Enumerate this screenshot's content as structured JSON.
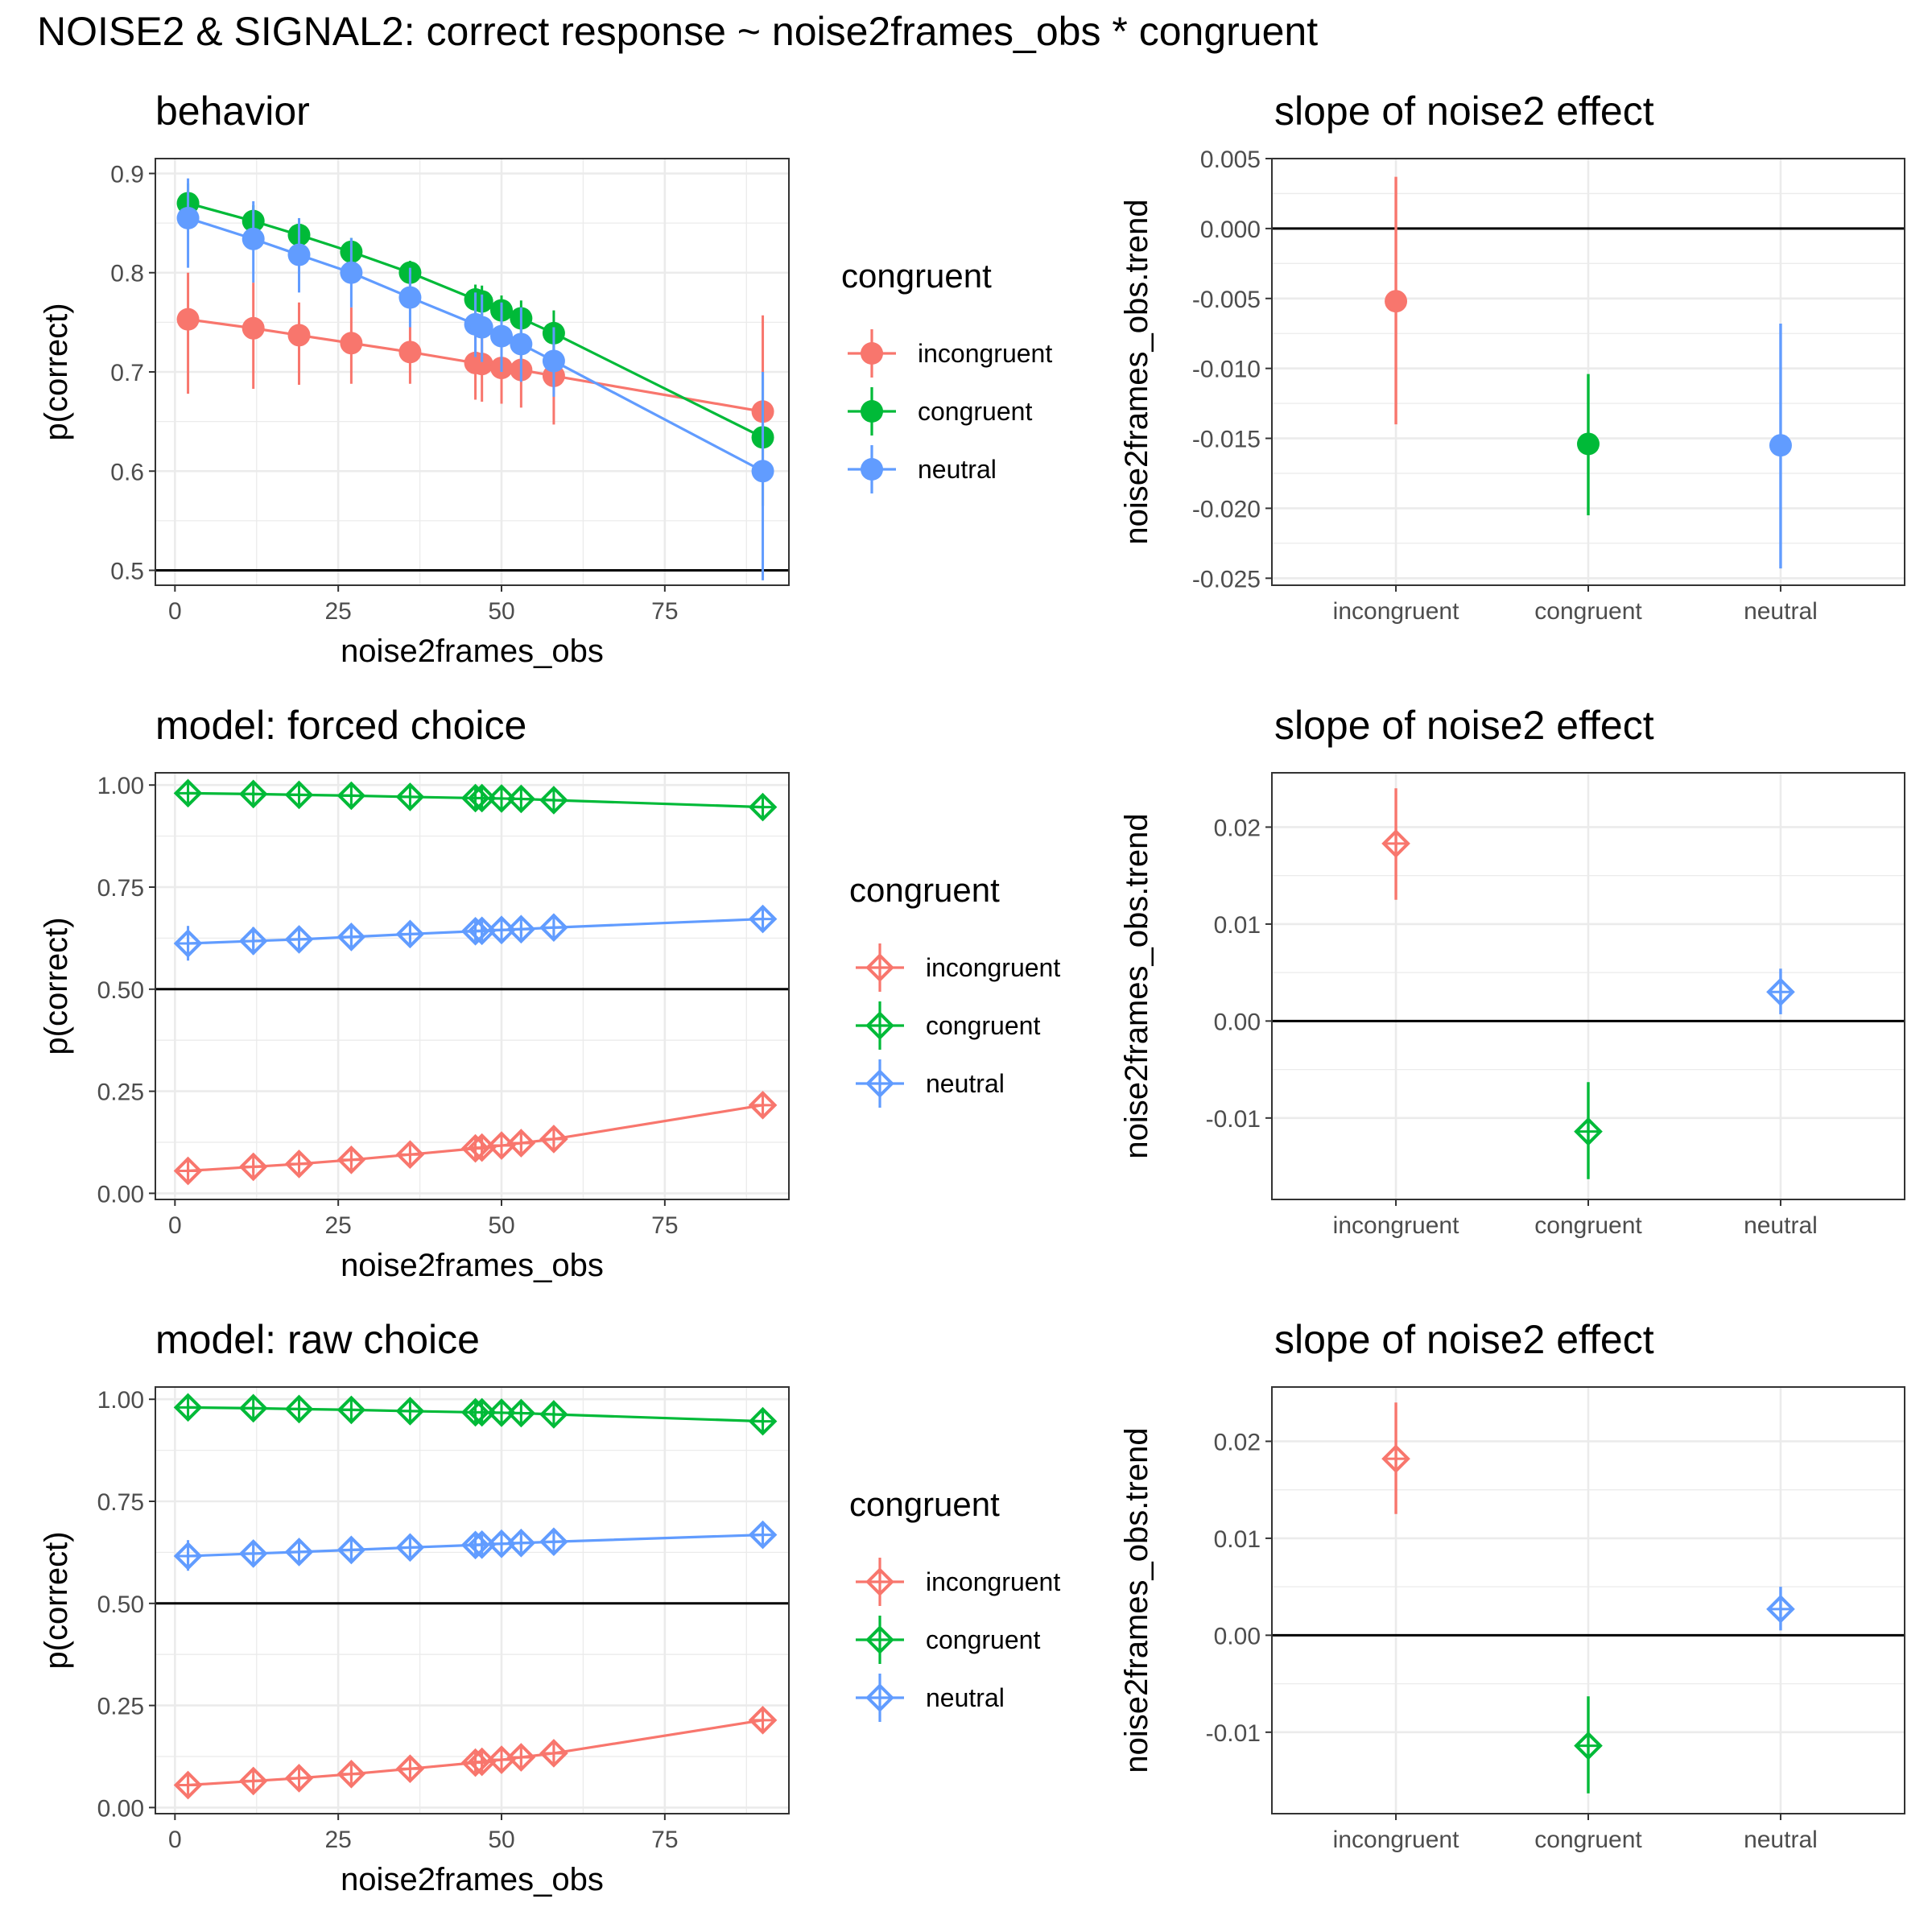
{
  "figure_title": "NOISE2 & SIGNAL2: correct response ~ noise2frames_obs * congruent",
  "colors": {
    "incongruent": "#F8766D",
    "congruent": "#00BA38",
    "neutral": "#619CFF",
    "grid": "#EBEBEB",
    "panel_border": "#333333",
    "reference_line": "#000000",
    "axis_text": "#4D4D4D"
  },
  "legend": {
    "title": "congruent",
    "items": [
      "incongruent",
      "congruent",
      "neutral"
    ]
  },
  "chart_data": [
    {
      "id": "behavior",
      "type": "line",
      "title": "behavior",
      "xlabel": "noise2frames_obs",
      "ylabel": "p(correct)",
      "marker": "circle",
      "xlim": [
        -3,
        94
      ],
      "ylim": [
        0.485,
        0.915
      ],
      "xticks": [
        0,
        25,
        50,
        75
      ],
      "xtick_labels": [
        "0",
        "25",
        "50",
        "75"
      ],
      "yticks": [
        0.5,
        0.6,
        0.7,
        0.8,
        0.9
      ],
      "ytick_labels": [
        "0.5",
        "0.6",
        "0.7",
        "0.8",
        "0.9"
      ],
      "reference_y": 0.5,
      "legend": true,
      "x": [
        2,
        12,
        19,
        27,
        36,
        46,
        47,
        50,
        53,
        58,
        90
      ],
      "series": [
        {
          "name": "incongruent",
          "values": [
            0.753,
            0.744,
            0.737,
            0.729,
            0.72,
            0.709,
            0.708,
            0.704,
            0.702,
            0.696,
            0.66
          ],
          "lower": [
            0.678,
            0.683,
            0.687,
            0.688,
            0.688,
            0.672,
            0.67,
            0.668,
            0.664,
            0.647,
            0.565
          ],
          "upper": [
            0.8,
            0.79,
            0.77,
            0.765,
            0.745,
            0.74,
            0.74,
            0.738,
            0.738,
            0.73,
            0.757
          ]
        },
        {
          "name": "congruent",
          "values": [
            0.87,
            0.852,
            0.838,
            0.821,
            0.8,
            0.773,
            0.771,
            0.762,
            0.754,
            0.739,
            0.634
          ],
          "lower": [
            0.848,
            0.835,
            0.822,
            0.808,
            0.787,
            0.758,
            0.755,
            0.745,
            0.735,
            0.716,
            0.565
          ],
          "upper": [
            0.89,
            0.868,
            0.855,
            0.835,
            0.812,
            0.788,
            0.787,
            0.777,
            0.772,
            0.762,
            0.7
          ]
        },
        {
          "name": "neutral",
          "values": [
            0.855,
            0.834,
            0.818,
            0.8,
            0.775,
            0.748,
            0.745,
            0.736,
            0.728,
            0.711,
            0.6
          ],
          "lower": [
            0.805,
            0.79,
            0.78,
            0.765,
            0.745,
            0.715,
            0.71,
            0.7,
            0.69,
            0.675,
            0.49
          ],
          "upper": [
            0.895,
            0.872,
            0.855,
            0.835,
            0.805,
            0.78,
            0.778,
            0.77,
            0.765,
            0.745,
            0.7
          ]
        }
      ]
    },
    {
      "id": "behavior-slope",
      "type": "scatter",
      "title": "slope of noise2 effect",
      "xlabel": "",
      "ylabel": "noise2frames_obs.trend",
      "marker": "circle",
      "categories": [
        "incongruent",
        "congruent",
        "neutral"
      ],
      "ylim": [
        -0.0255,
        0.005
      ],
      "yticks": [
        0.005,
        0.0,
        -0.005,
        -0.01,
        -0.015,
        -0.02,
        -0.025
      ],
      "ytick_labels": [
        "0.005",
        "0.000",
        "-0.005",
        "-0.010",
        "-0.015",
        "-0.020",
        "-0.025"
      ],
      "reference_y": 0,
      "values": [
        -0.0052,
        -0.0154,
        -0.0155
      ],
      "lower": [
        -0.014,
        -0.0205,
        -0.0243
      ],
      "upper": [
        0.0037,
        -0.0104,
        -0.0068
      ]
    },
    {
      "id": "forced-choice",
      "type": "line",
      "title": "model: forced choice",
      "xlabel": "noise2frames_obs",
      "ylabel": "p(correct)",
      "marker": "diamond",
      "xlim": [
        -3,
        94
      ],
      "ylim": [
        -0.015,
        1.03
      ],
      "xticks": [
        0,
        25,
        50,
        75
      ],
      "xtick_labels": [
        "0",
        "25",
        "50",
        "75"
      ],
      "yticks": [
        0.0,
        0.25,
        0.5,
        0.75,
        1.0
      ],
      "ytick_labels": [
        "0.00",
        "0.25",
        "0.50",
        "0.75",
        "1.00"
      ],
      "reference_y": 0.5,
      "legend": true,
      "x": [
        2,
        12,
        19,
        27,
        36,
        46,
        47,
        50,
        53,
        58,
        90
      ],
      "series": [
        {
          "name": "incongruent",
          "values": [
            0.055,
            0.065,
            0.072,
            0.082,
            0.095,
            0.11,
            0.112,
            0.117,
            0.123,
            0.133,
            0.216
          ],
          "lower": [
            0.04,
            0.05,
            0.058,
            0.068,
            0.082,
            0.095,
            0.097,
            0.101,
            0.106,
            0.115,
            0.19
          ],
          "upper": [
            0.07,
            0.08,
            0.088,
            0.098,
            0.11,
            0.127,
            0.13,
            0.135,
            0.142,
            0.153,
            0.245
          ]
        },
        {
          "name": "congruent",
          "values": [
            0.98,
            0.978,
            0.976,
            0.974,
            0.971,
            0.968,
            0.968,
            0.967,
            0.966,
            0.963,
            0.946
          ],
          "lower": [
            0.975,
            0.973,
            0.972,
            0.97,
            0.967,
            0.964,
            0.963,
            0.962,
            0.96,
            0.957,
            0.935
          ],
          "upper": [
            0.985,
            0.983,
            0.981,
            0.978,
            0.975,
            0.972,
            0.972,
            0.971,
            0.97,
            0.968,
            0.955
          ]
        },
        {
          "name": "neutral",
          "values": [
            0.612,
            0.618,
            0.622,
            0.628,
            0.635,
            0.642,
            0.643,
            0.645,
            0.647,
            0.651,
            0.672
          ],
          "lower": [
            0.57,
            0.585,
            0.593,
            0.603,
            0.614,
            0.625,
            0.626,
            0.628,
            0.63,
            0.633,
            0.655
          ],
          "upper": [
            0.655,
            0.652,
            0.651,
            0.653,
            0.656,
            0.66,
            0.66,
            0.662,
            0.664,
            0.668,
            0.69
          ]
        }
      ]
    },
    {
      "id": "forced-choice-slope",
      "type": "scatter",
      "title": "slope of noise2 effect",
      "xlabel": "",
      "ylabel": "noise2frames_obs.trend",
      "marker": "diamond",
      "categories": [
        "incongruent",
        "congruent",
        "neutral"
      ],
      "ylim": [
        -0.0184,
        0.0256
      ],
      "yticks": [
        0.02,
        0.01,
        0.0,
        -0.01
      ],
      "ytick_labels": [
        "0.02",
        "0.01",
        "0.00",
        "-0.01"
      ],
      "reference_y": 0,
      "values": [
        0.0183,
        -0.0114,
        0.003
      ],
      "lower": [
        0.0125,
        -0.0163,
        0.0007
      ],
      "upper": [
        0.024,
        -0.0063,
        0.0054
      ]
    },
    {
      "id": "raw-choice",
      "type": "line",
      "title": "model: raw choice",
      "xlabel": "noise2frames_obs",
      "ylabel": "p(correct)",
      "marker": "diamond",
      "xlim": [
        -3,
        94
      ],
      "ylim": [
        -0.015,
        1.03
      ],
      "xticks": [
        0,
        25,
        50,
        75
      ],
      "xtick_labels": [
        "0",
        "25",
        "50",
        "75"
      ],
      "yticks": [
        0.0,
        0.25,
        0.5,
        0.75,
        1.0
      ],
      "ytick_labels": [
        "0.00",
        "0.25",
        "0.50",
        "0.75",
        "1.00"
      ],
      "reference_y": 0.5,
      "legend": true,
      "x": [
        2,
        12,
        19,
        27,
        36,
        46,
        47,
        50,
        53,
        58,
        90
      ],
      "series": [
        {
          "name": "incongruent",
          "values": [
            0.055,
            0.065,
            0.072,
            0.082,
            0.095,
            0.11,
            0.112,
            0.117,
            0.123,
            0.133,
            0.214
          ],
          "lower": [
            0.04,
            0.05,
            0.058,
            0.068,
            0.082,
            0.095,
            0.097,
            0.101,
            0.106,
            0.115,
            0.19
          ],
          "upper": [
            0.07,
            0.08,
            0.088,
            0.098,
            0.11,
            0.127,
            0.13,
            0.135,
            0.142,
            0.153,
            0.245
          ]
        },
        {
          "name": "congruent",
          "values": [
            0.98,
            0.978,
            0.976,
            0.974,
            0.971,
            0.968,
            0.968,
            0.967,
            0.966,
            0.963,
            0.946
          ],
          "lower": [
            0.975,
            0.973,
            0.972,
            0.97,
            0.967,
            0.964,
            0.963,
            0.962,
            0.96,
            0.957,
            0.935
          ],
          "upper": [
            0.985,
            0.983,
            0.981,
            0.978,
            0.975,
            0.972,
            0.972,
            0.971,
            0.97,
            0.968,
            0.955
          ]
        },
        {
          "name": "neutral",
          "values": [
            0.616,
            0.622,
            0.626,
            0.631,
            0.637,
            0.643,
            0.644,
            0.646,
            0.648,
            0.651,
            0.668
          ],
          "lower": [
            0.58,
            0.59,
            0.598,
            0.607,
            0.617,
            0.626,
            0.627,
            0.629,
            0.631,
            0.634,
            0.652
          ],
          "upper": [
            0.655,
            0.652,
            0.651,
            0.653,
            0.656,
            0.66,
            0.66,
            0.662,
            0.664,
            0.668,
            0.685
          ]
        }
      ]
    },
    {
      "id": "raw-choice-slope",
      "type": "scatter",
      "title": "slope of noise2 effect",
      "xlabel": "",
      "ylabel": "noise2frames_obs.trend",
      "marker": "diamond",
      "categories": [
        "incongruent",
        "congruent",
        "neutral"
      ],
      "ylim": [
        -0.0184,
        0.0256
      ],
      "yticks": [
        0.02,
        0.01,
        0.0,
        -0.01
      ],
      "ytick_labels": [
        "0.02",
        "0.01",
        "0.00",
        "-0.01"
      ],
      "reference_y": 0,
      "values": [
        0.0182,
        -0.0114,
        0.0027
      ],
      "lower": [
        0.0125,
        -0.0163,
        0.0005
      ],
      "upper": [
        0.024,
        -0.0063,
        0.005
      ]
    }
  ]
}
